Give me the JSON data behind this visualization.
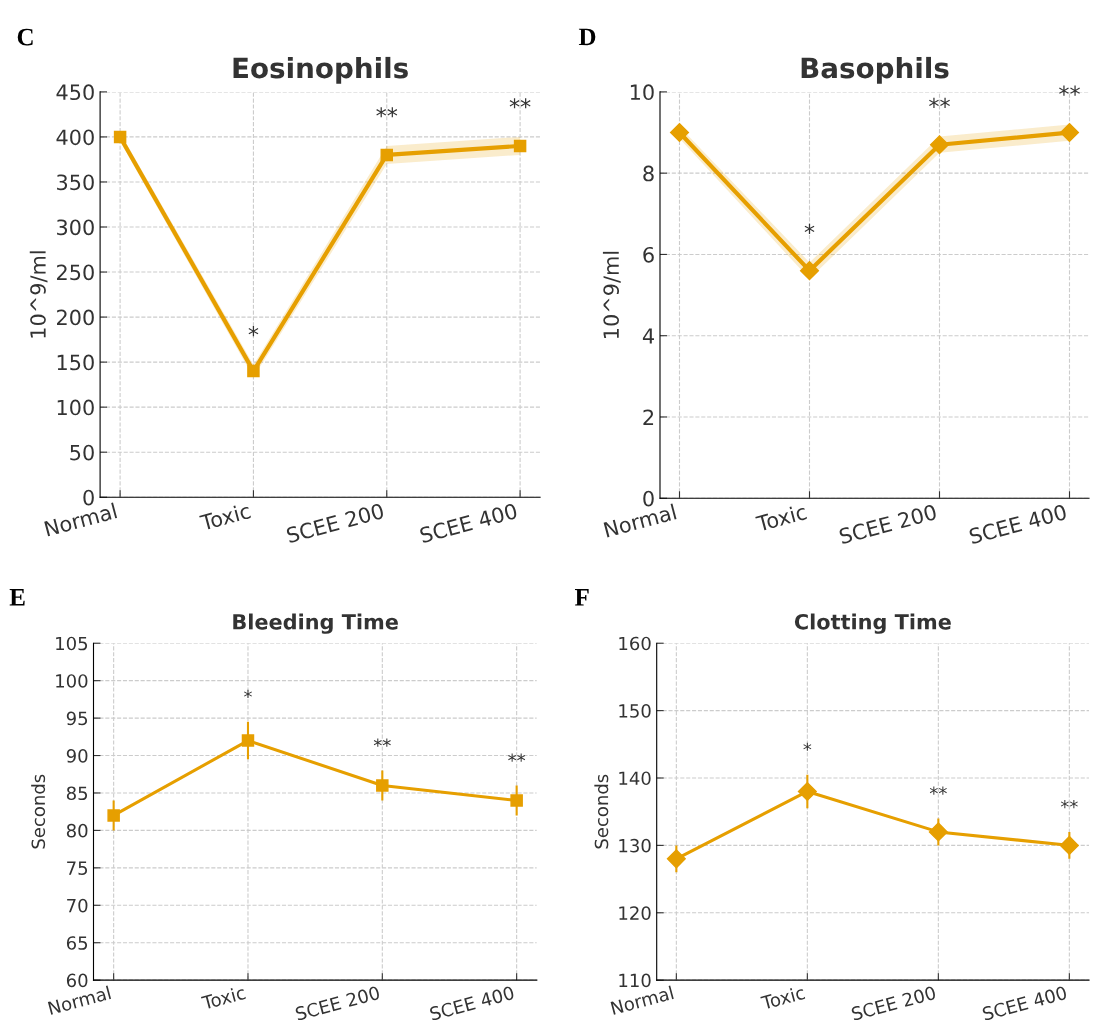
{
  "chart_data": [
    {
      "type": "line",
      "title": "Eosinophils",
      "ylabel": "10^9/ml",
      "categories": [
        "Normal",
        "Toxic",
        "SCEE 200",
        "SCEE 400"
      ],
      "marker": "square",
      "line_style": "solid",
      "grid": true,
      "ylim": [
        0,
        450
      ],
      "yticks": [
        0,
        50,
        100,
        150,
        200,
        250,
        300,
        350,
        400,
        450
      ],
      "series": [
        {
          "color": "#e69f00",
          "values": [
            400,
            140,
            380,
            390
          ],
          "lower": [
            395,
            133,
            370,
            380
          ],
          "upper": [
            405,
            147,
            390,
            400
          ]
        }
      ],
      "annotations": [
        "C",
        "*",
        "**",
        "**"
      ]
    },
    {
      "type": "line",
      "title": "Basophils",
      "ylabel": "10^9/ml",
      "categories": [
        "Normal",
        "Toxic",
        "SCEE 200",
        "SCEE 400"
      ],
      "marker": "diamond",
      "line_style": "solid",
      "grid": true,
      "ylim": [
        0,
        10
      ],
      "yticks": [
        0,
        2,
        4,
        6,
        8,
        10
      ],
      "series": [
        {
          "color": "#e69f00",
          "values": [
            9,
            5.6,
            8.7,
            9
          ],
          "lower": [
            8.85,
            5.4,
            8.5,
            8.8
          ],
          "upper": [
            9.15,
            5.8,
            8.9,
            9.2
          ]
        }
      ],
      "annotations": [
        "D",
        "*",
        "**",
        "**"
      ]
    },
    {
      "type": "line",
      "title": "Bleeding Time",
      "ylabel": "Seconds",
      "categories": [
        "Normal",
        "Toxic",
        "SCEE 200",
        "SCEE 400"
      ],
      "marker": "square",
      "line_style": "solid",
      "grid": true,
      "ylim": [
        60,
        105
      ],
      "yticks": [
        60,
        65,
        70,
        75,
        80,
        85,
        90,
        95,
        100,
        105
      ],
      "series": [
        {
          "color": "#e69f00",
          "values": [
            82,
            92,
            86,
            84
          ],
          "errors": [
            2,
            2.5,
            2,
            2
          ]
        }
      ],
      "annotations": [
        "E",
        "*",
        "**",
        "**"
      ]
    },
    {
      "type": "line",
      "title": "Clotting Time",
      "ylabel": "Seconds",
      "categories": [
        "Normal",
        "Toxic",
        "SCEE 200",
        "SCEE 400"
      ],
      "marker": "diamond",
      "line_style": "solid",
      "grid": true,
      "ylim": [
        110,
        160
      ],
      "yticks": [
        110,
        120,
        130,
        140,
        150,
        160
      ],
      "series": [
        {
          "color": "#e69f00",
          "values": [
            128,
            138,
            132,
            130
          ],
          "errors": [
            2,
            2.5,
            2,
            2
          ]
        }
      ],
      "annotations": [
        "F",
        "*",
        "**",
        "**"
      ]
    }
  ]
}
